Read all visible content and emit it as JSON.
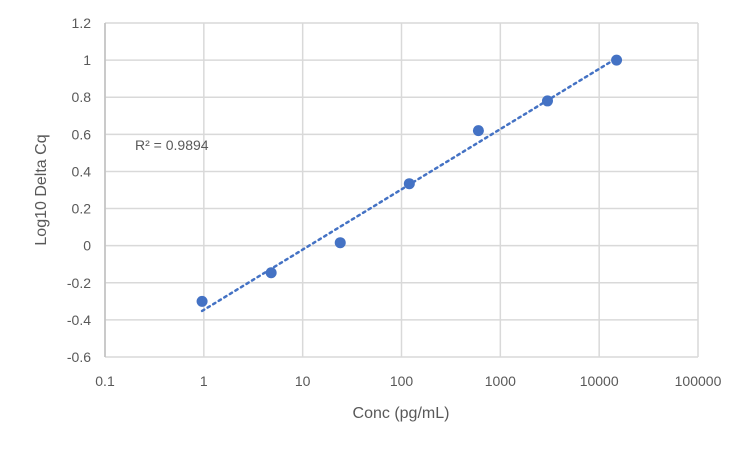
{
  "chart_data": {
    "type": "scatter",
    "title": "",
    "xlabel": "Conc (pg/mL)",
    "ylabel": "Log10 Delta Cq",
    "x_scale": "log",
    "xlim": [
      0.1,
      100000
    ],
    "ylim": [
      -0.6,
      1.2
    ],
    "x_ticks": [
      "0.1",
      "1",
      "10",
      "100",
      "1000",
      "10000",
      "100000"
    ],
    "y_ticks": [
      "-0.6",
      "-0.4",
      "-0.2",
      "0",
      "0.2",
      "0.4",
      "0.6",
      "0.8",
      "1",
      "1.2"
    ],
    "grid": true,
    "points": [
      {
        "x": 0.96,
        "y": -0.3
      },
      {
        "x": 4.8,
        "y": -0.146
      },
      {
        "x": 24,
        "y": 0.016
      },
      {
        "x": 120,
        "y": 0.334
      },
      {
        "x": 600,
        "y": 0.62
      },
      {
        "x": 3000,
        "y": 0.78
      },
      {
        "x": 15000,
        "y": 1.0
      }
    ],
    "trendline": {
      "type": "logarithmic",
      "style": "dotted",
      "r_squared_label": "R² = 0.9894"
    },
    "colors": {
      "marker": "#4472C4",
      "trendline": "#4472C4",
      "grid": "#D9D9D9",
      "text": "#595959"
    }
  }
}
